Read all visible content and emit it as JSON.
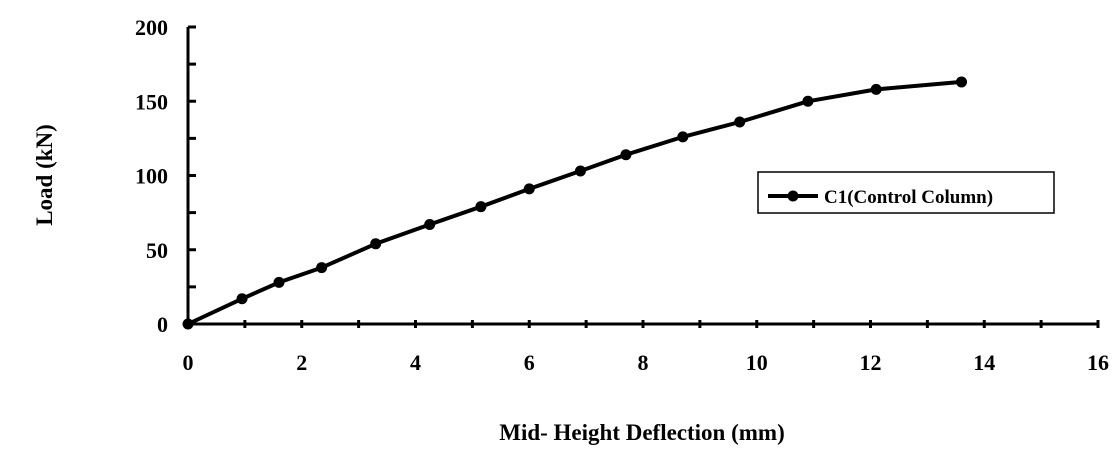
{
  "chart_data": {
    "type": "line",
    "xlabel": "Mid- Height  Deflection (mm)",
    "ylabel": "Load (kN)",
    "xlim": [
      0,
      16
    ],
    "ylim": [
      0,
      200
    ],
    "x_ticks": [
      0,
      2,
      4,
      6,
      8,
      10,
      12,
      14,
      16
    ],
    "x_tick_labels": [
      "0",
      "2",
      "4",
      "6",
      "8",
      "10",
      "12",
      "14",
      "16"
    ],
    "y_ticks": [
      0,
      50,
      100,
      150,
      200
    ],
    "y_tick_labels": [
      "0",
      "50",
      "100",
      "150",
      "200"
    ],
    "grid": false,
    "legend_position": "right",
    "series": [
      {
        "name": "C1(Control  Column)",
        "color": "#000000",
        "marker": "circle",
        "x": [
          0,
          0.95,
          1.6,
          2.35,
          3.3,
          4.25,
          5.15,
          6.0,
          6.9,
          7.7,
          8.7,
          9.7,
          10.9,
          12.1,
          13.6
        ],
        "y": [
          0,
          17,
          28,
          38,
          54,
          67,
          79,
          91,
          103,
          114,
          126,
          136,
          150,
          158,
          163
        ]
      }
    ]
  }
}
